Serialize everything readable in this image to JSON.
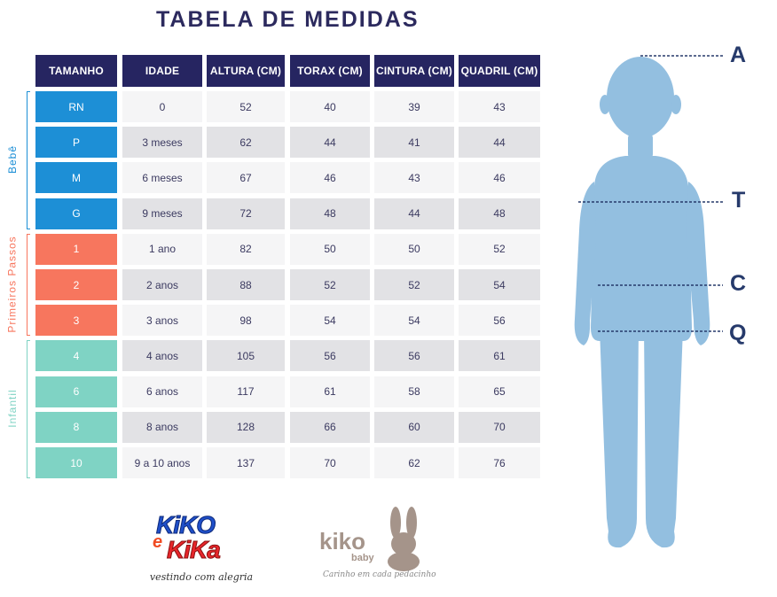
{
  "title": "TABELA DE MEDIDAS",
  "headers": [
    "TAMANHO",
    "IDADE",
    "ALTURA (CM)",
    "TORAX (CM)",
    "CINTURA (CM)",
    "QUADRIL (CM)"
  ],
  "groups": [
    {
      "label": "Bebê",
      "color": "#1d8fd6",
      "rows": [
        {
          "size": "RN",
          "age": "0",
          "height": "52",
          "chest": "40",
          "waist": "39",
          "hip": "43"
        },
        {
          "size": "P",
          "age": "3 meses",
          "height": "62",
          "chest": "44",
          "waist": "41",
          "hip": "44"
        },
        {
          "size": "M",
          "age": "6 meses",
          "height": "67",
          "chest": "46",
          "waist": "43",
          "hip": "46"
        },
        {
          "size": "G",
          "age": "9 meses",
          "height": "72",
          "chest": "48",
          "waist": "44",
          "hip": "48"
        }
      ]
    },
    {
      "label": "Primeiros Passos",
      "color": "#f7765e",
      "rows": [
        {
          "size": "1",
          "age": "1 ano",
          "height": "82",
          "chest": "50",
          "waist": "50",
          "hip": "52"
        },
        {
          "size": "2",
          "age": "2 anos",
          "height": "88",
          "chest": "52",
          "waist": "52",
          "hip": "54"
        },
        {
          "size": "3",
          "age": "3 anos",
          "height": "98",
          "chest": "54",
          "waist": "54",
          "hip": "56"
        }
      ]
    },
    {
      "label": "Infantil",
      "color": "#7fd3c4",
      "rows": [
        {
          "size": "4",
          "age": "4 anos",
          "height": "105",
          "chest": "56",
          "waist": "56",
          "hip": "61"
        },
        {
          "size": "6",
          "age": "6 anos",
          "height": "117",
          "chest": "61",
          "waist": "58",
          "hip": "65"
        },
        {
          "size": "8",
          "age": "8 anos",
          "height": "128",
          "chest": "66",
          "waist": "60",
          "hip": "70"
        },
        {
          "size": "10",
          "age": "9 a 10 anos",
          "height": "137",
          "chest": "70",
          "waist": "62",
          "hip": "76"
        }
      ]
    }
  ],
  "measure_labels": [
    "A",
    "T",
    "C",
    "Q"
  ],
  "logos": {
    "kiko_e_kika": {
      "line1": "KiKO",
      "line2": "e",
      "line3": "KiKa",
      "tagline": "vestindo com alegria"
    },
    "kiko_baby": {
      "brand": "kiko",
      "sub": "baby",
      "tagline": "Carinho em cada pedacinho"
    }
  },
  "colors": {
    "header": "#262561",
    "figure": "#93bfe0",
    "measure_line": "#263a6b"
  }
}
